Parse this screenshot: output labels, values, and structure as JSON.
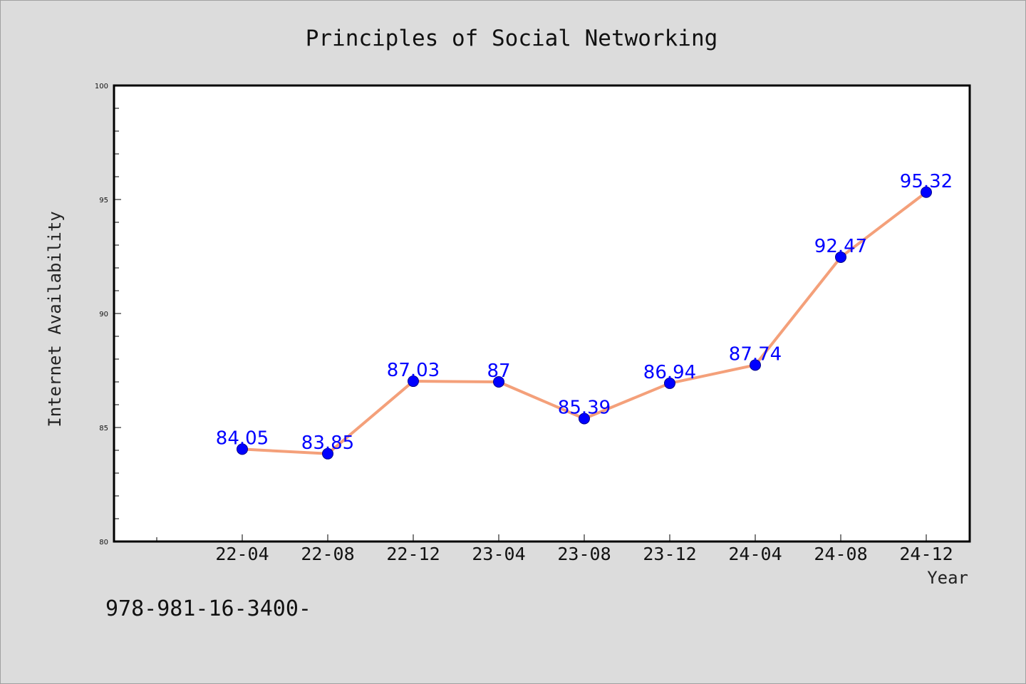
{
  "chart_data": {
    "type": "line",
    "title": "Principles of Social Networking",
    "xlabel": "Year",
    "ylabel": "Internet Availability",
    "categories": [
      "22-04",
      "22-08",
      "22-12",
      "23-04",
      "23-08",
      "23-12",
      "24-04",
      "24-08",
      "24-12"
    ],
    "series": [
      {
        "values": [
          84.05,
          83.85,
          87.03,
          87,
          85.39,
          86.94,
          87.74,
          92.47,
          95.32
        ],
        "labels": [
          "84.05",
          "83.85",
          "87.03",
          "87",
          "85.39",
          "86.94",
          "87.74",
          "92.47",
          "95.32"
        ],
        "line_color": "#f4a07a",
        "marker_color": "#0000ff"
      }
    ],
    "ylim": [
      80,
      100
    ],
    "yticks": [
      80,
      85,
      90,
      95,
      100
    ],
    "ytick_labels": [
      "80",
      "85",
      "90",
      "95",
      "100"
    ],
    "grid": false,
    "legend": "none",
    "plot_background": "#ffffff",
    "figure_background": "#dcdcdc"
  },
  "footer_text": "978-981-16-3400-"
}
